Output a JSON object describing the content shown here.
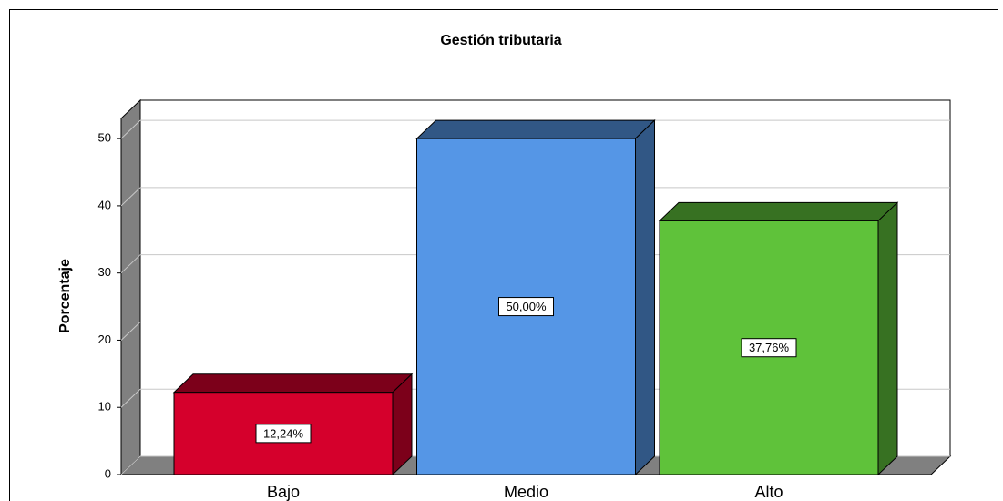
{
  "chart_data": {
    "type": "bar",
    "title": "Gestión tributaria",
    "y_label": "Porcentaje",
    "categories": [
      "Bajo",
      "Medio",
      "Alto"
    ],
    "values": [
      12.24,
      50.0,
      37.76
    ],
    "value_labels": [
      "12,24%",
      "50,00%",
      "37,76%"
    ],
    "colors": [
      "#d5002c",
      "#5596e6",
      "#5fc23a"
    ],
    "ylim": [
      0,
      53
    ],
    "yticks": [
      0,
      10,
      20,
      30,
      40,
      50
    ],
    "grid": true
  }
}
